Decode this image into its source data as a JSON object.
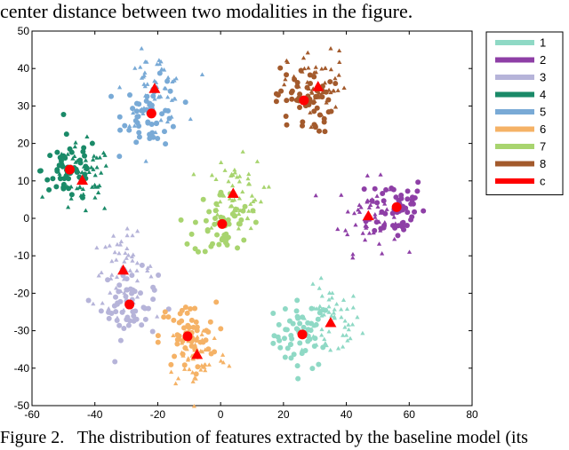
{
  "caption_top": "center distance between two modalities in the figure.",
  "caption_bottom": "Figure 2.   The distribution of features extracted by the baseline model (its",
  "chart_data": {
    "type": "scatter",
    "title": "",
    "xlabel": "",
    "ylabel": "",
    "xlim": [
      -60,
      80
    ],
    "ylim": [
      -50,
      50
    ],
    "xticks": [
      -60,
      -40,
      -20,
      0,
      20,
      40,
      60,
      80
    ],
    "yticks": [
      -50,
      -40,
      -30,
      -20,
      -10,
      0,
      10,
      20,
      30,
      40,
      50
    ],
    "grid": false,
    "legend_position": "top-right-outside",
    "markers": {
      "modality_a": "circle",
      "modality_b": "triangle"
    },
    "series": [
      {
        "name": "1",
        "color": "#8fd9c5",
        "center_circle": [
          26,
          -31
        ],
        "center_triangle": [
          35,
          -28
        ],
        "spread": 6
      },
      {
        "name": "2",
        "color": "#8e3fa6",
        "center_circle": [
          56,
          3
        ],
        "center_triangle": [
          47,
          0.5
        ],
        "spread": 6
      },
      {
        "name": "3",
        "color": "#b6b4d9",
        "center_circle": [
          -29,
          -23
        ],
        "center_triangle": [
          -31,
          -14
        ],
        "spread": 6
      },
      {
        "name": "4",
        "color": "#1a8a68",
        "center_circle": [
          -48,
          13
        ],
        "center_triangle": [
          -44,
          10
        ],
        "spread": 6
      },
      {
        "name": "5",
        "color": "#79aad6",
        "center_circle": [
          -22,
          28
        ],
        "center_triangle": [
          -21,
          34.5
        ],
        "spread": 6
      },
      {
        "name": "6",
        "color": "#f5b266",
        "center_circle": [
          -10.5,
          -31.5
        ],
        "center_triangle": [
          -7.5,
          -36.5
        ],
        "spread": 6
      },
      {
        "name": "7",
        "color": "#a8d46f",
        "center_circle": [
          0.5,
          -1.5
        ],
        "center_triangle": [
          4,
          6.5
        ],
        "spread": 6
      },
      {
        "name": "8",
        "color": "#a35a2c",
        "center_circle": [
          26.5,
          31.5
        ],
        "center_triangle": [
          31,
          35
        ],
        "spread": 6
      },
      {
        "name": "c",
        "color": "#ff0000",
        "is_center": true
      }
    ]
  }
}
